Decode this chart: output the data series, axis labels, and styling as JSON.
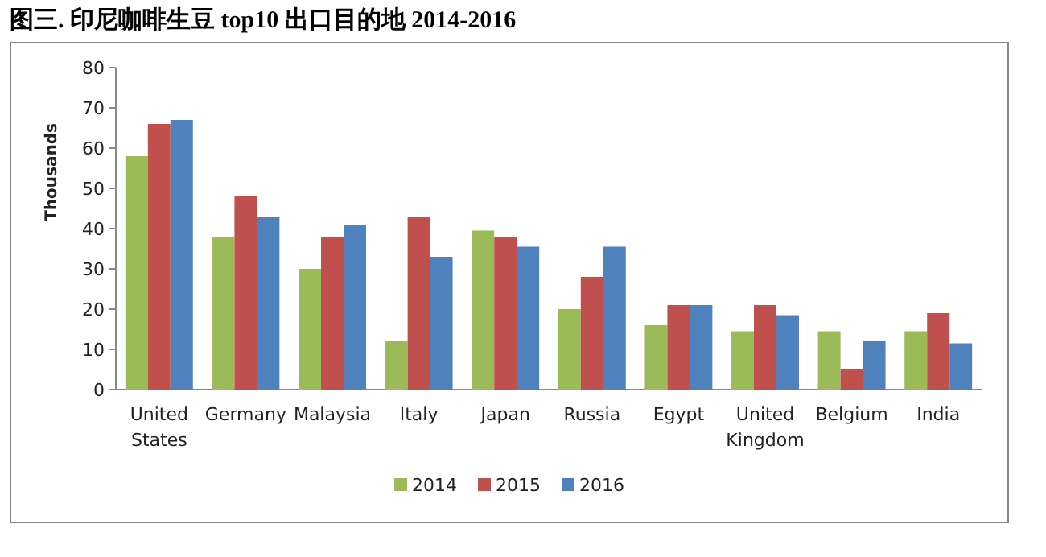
{
  "chart_data": {
    "type": "bar",
    "title": "图三. 印尼咖啡生豆 top10 出口目的地  2014-2016",
    "ylabel": "Thousands",
    "categories": [
      "United States",
      "Germany",
      "Malaysia",
      "Italy",
      "Japan",
      "Russia",
      "Egypt",
      "United Kingdom",
      "Belgium",
      "India"
    ],
    "series": [
      {
        "name": "2014",
        "color": "#9bbb59",
        "values": [
          58,
          38,
          30,
          12,
          39.5,
          20,
          16,
          14.5,
          14.5,
          14.5
        ]
      },
      {
        "name": "2015",
        "color": "#c0504d",
        "values": [
          66,
          48,
          38,
          43,
          38,
          28,
          21,
          21,
          5,
          19
        ]
      },
      {
        "name": "2016",
        "color": "#4f81bd",
        "values": [
          67,
          43,
          41,
          33,
          35.5,
          35.5,
          21,
          18.5,
          12,
          11.5
        ]
      }
    ],
    "ylim": [
      0,
      80
    ],
    "yticks": [
      0,
      10,
      20,
      30,
      40,
      50,
      60,
      70,
      80
    ],
    "legend": "bottom"
  }
}
